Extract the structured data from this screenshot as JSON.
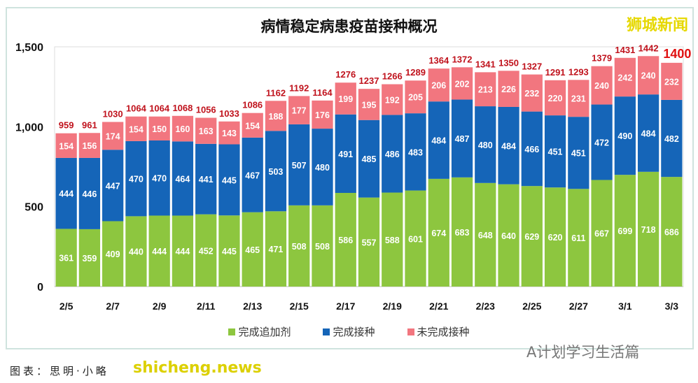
{
  "chart_data": {
    "type": "bar",
    "stacked": true,
    "title": "病情稳定病患疫苗接种概况",
    "categories": [
      "2/5",
      "2/6",
      "2/7",
      "2/8",
      "2/9",
      "2/10",
      "2/11",
      "2/12",
      "2/13",
      "2/14",
      "2/15",
      "2/16",
      "2/17",
      "2/18",
      "2/19",
      "2/20",
      "2/21",
      "2/22",
      "2/23",
      "2/24",
      "2/25",
      "2/26",
      "2/27",
      "2/28",
      "3/1",
      "3/2",
      "3/3"
    ],
    "tick_labels": [
      "2/5",
      "2/7",
      "2/9",
      "2/11",
      "2/13",
      "2/15",
      "2/17",
      "2/19",
      "2/21",
      "2/23",
      "2/25",
      "2/27",
      "3/1",
      "3/3"
    ],
    "series": [
      {
        "name": "完成追加剂",
        "color": "#8dc63f",
        "values": [
          361,
          359,
          409,
          440,
          444,
          444,
          452,
          445,
          465,
          471,
          508,
          508,
          586,
          557,
          588,
          601,
          674,
          683,
          648,
          640,
          629,
          620,
          611,
          667,
          699,
          718,
          686
        ]
      },
      {
        "name": "完成接种",
        "color": "#1565b8",
        "values": [
          444,
          446,
          447,
          470,
          470,
          464,
          441,
          445,
          467,
          503,
          507,
          480,
          491,
          485,
          486,
          483,
          484,
          487,
          480,
          484,
          466,
          451,
          451,
          472,
          490,
          484,
          482
        ]
      },
      {
        "name": "未完成接种",
        "color": "#f2767f",
        "values": [
          154,
          156,
          174,
          154,
          150,
          160,
          163,
          143,
          154,
          188,
          177,
          176,
          199,
          195,
          192,
          205,
          206,
          202,
          213,
          226,
          232,
          220,
          231,
          240,
          242,
          240,
          232
        ]
      }
    ],
    "totals": [
      959,
      961,
      1030,
      1064,
      1064,
      1068,
      1056,
      1033,
      1086,
      1162,
      1192,
      1164,
      1276,
      1237,
      1266,
      1289,
      1364,
      1372,
      1341,
      1350,
      1327,
      1291,
      1293,
      1379,
      1431,
      1442,
      1400
    ],
    "ylim": [
      0,
      1500
    ],
    "yticks": [
      "0",
      "500",
      "1,000",
      "1,500"
    ],
    "xlabel": "",
    "ylabel": "",
    "legend": "bottom",
    "grid": false
  },
  "watermarks": {
    "top_right": "狮城新闻",
    "bottom_right": "A计划学习生活篇",
    "bottom_left": "shicheng.news"
  },
  "source": "图表：思明·小略"
}
